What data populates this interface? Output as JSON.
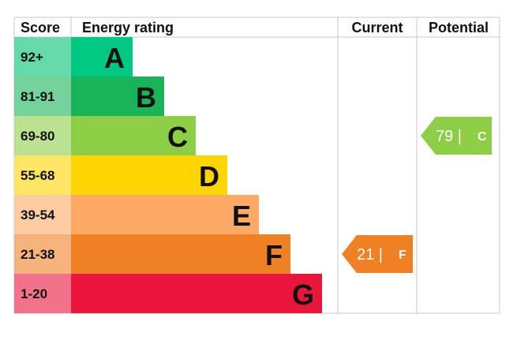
{
  "chart_data": {
    "type": "bar",
    "headers": {
      "score": "Score",
      "rating": "Energy rating",
      "current": "Current",
      "potential": "Potential"
    },
    "bands": [
      {
        "score": "92+",
        "letter": "A",
        "color": "#00c781",
        "score_color": "#66d9a8"
      },
      {
        "score": "81-91",
        "letter": "B",
        "color": "#19b459",
        "score_color": "#75d29b"
      },
      {
        "score": "69-80",
        "letter": "C",
        "color": "#8dce46",
        "score_color": "#bbe290"
      },
      {
        "score": "55-68",
        "letter": "D",
        "color": "#ffd500",
        "score_color": "#ffe566"
      },
      {
        "score": "39-54",
        "letter": "E",
        "color": "#fcaa65",
        "score_color": "#fdcca3"
      },
      {
        "score": "21-38",
        "letter": "F",
        "color": "#ef8023",
        "score_color": "#f5b37b"
      },
      {
        "score": "1-20",
        "letter": "G",
        "color": "#e9153b",
        "score_color": "#f27389"
      }
    ],
    "current": {
      "value": 21,
      "letter": "F",
      "color": "#ef8023"
    },
    "potential": {
      "value": 79,
      "letter": "C",
      "color": "#8dce46"
    }
  }
}
